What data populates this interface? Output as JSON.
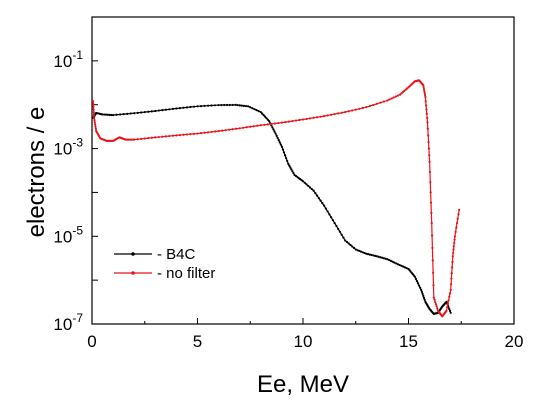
{
  "chart_data": {
    "type": "line",
    "title": "",
    "xlabel": "Ee, MeV",
    "ylabel": "electrons / e",
    "x_scale": "linear",
    "y_scale": "log",
    "xlim": [
      0,
      20
    ],
    "ylim": [
      1e-07,
      1
    ],
    "x_ticks": [
      {
        "value": 0,
        "label": "0"
      },
      {
        "value": 5,
        "label": "5"
      },
      {
        "value": 10,
        "label": "10"
      },
      {
        "value": 15,
        "label": "15"
      },
      {
        "value": 20,
        "label": "20"
      }
    ],
    "y_major_ticks": [
      {
        "value": 1e-07,
        "base": "10",
        "exp": "-7"
      },
      {
        "value": 1e-05,
        "base": "10",
        "exp": "-5"
      },
      {
        "value": 0.001,
        "base": "10",
        "exp": "-3"
      },
      {
        "value": 0.1,
        "base": "10",
        "exp": "-1"
      }
    ],
    "grid": false,
    "legend_position": "bottom-left",
    "series": [
      {
        "name": "- B4C",
        "color": "#000000",
        "x": [
          0.05,
          0.2,
          0.5,
          1,
          2,
          3,
          4,
          5,
          6,
          6.8,
          7.4,
          8,
          8.4,
          8.7,
          9,
          9.3,
          9.6,
          10,
          10.5,
          11,
          11.5,
          12,
          12.5,
          13,
          13.5,
          14,
          14.5,
          15,
          15.3,
          15.6,
          15.8,
          16,
          16.2,
          16.4,
          16.6,
          16.8,
          17
        ],
        "y": [
          0.005,
          0.0065,
          0.006,
          0.0058,
          0.0064,
          0.0072,
          0.0082,
          0.0092,
          0.0098,
          0.0099,
          0.0092,
          0.0068,
          0.0042,
          0.0022,
          0.0011,
          0.00045,
          0.00025,
          0.00018,
          0.00011,
          5e-05,
          2e-05,
          8e-06,
          5e-06,
          4e-06,
          3.5e-06,
          3e-06,
          2.3e-06,
          1.8e-06,
          1.2e-06,
          6e-07,
          3.2e-07,
          2.2e-07,
          1.7e-07,
          1.8e-07,
          2.5e-07,
          3.2e-07,
          1.8e-07
        ]
      },
      {
        "name": "- no filter",
        "color": "#e8141b",
        "x": [
          0.05,
          0.1,
          0.2,
          0.4,
          0.7,
          1,
          1.3,
          1.6,
          2,
          3,
          4,
          5,
          6,
          7,
          8,
          9,
          10,
          11,
          12,
          13,
          14,
          14.6,
          15,
          15.3,
          15.5,
          15.7,
          15.8,
          15.9,
          16,
          16.1,
          16.2,
          16.4,
          16.6,
          16.8,
          17,
          17.1,
          17.2,
          17.4
        ],
        "y": [
          0.012,
          0.005,
          0.0025,
          0.0017,
          0.0015,
          0.0015,
          0.0018,
          0.0016,
          0.0016,
          0.0018,
          0.002,
          0.0022,
          0.0025,
          0.0029,
          0.0034,
          0.0039,
          0.0046,
          0.0055,
          0.0068,
          0.0088,
          0.0125,
          0.017,
          0.025,
          0.034,
          0.036,
          0.028,
          0.015,
          0.004,
          0.0005,
          2e-05,
          4e-07,
          2e-07,
          1.5e-07,
          2e-07,
          6e-07,
          3.5e-06,
          1e-05,
          4e-05
        ]
      }
    ]
  }
}
